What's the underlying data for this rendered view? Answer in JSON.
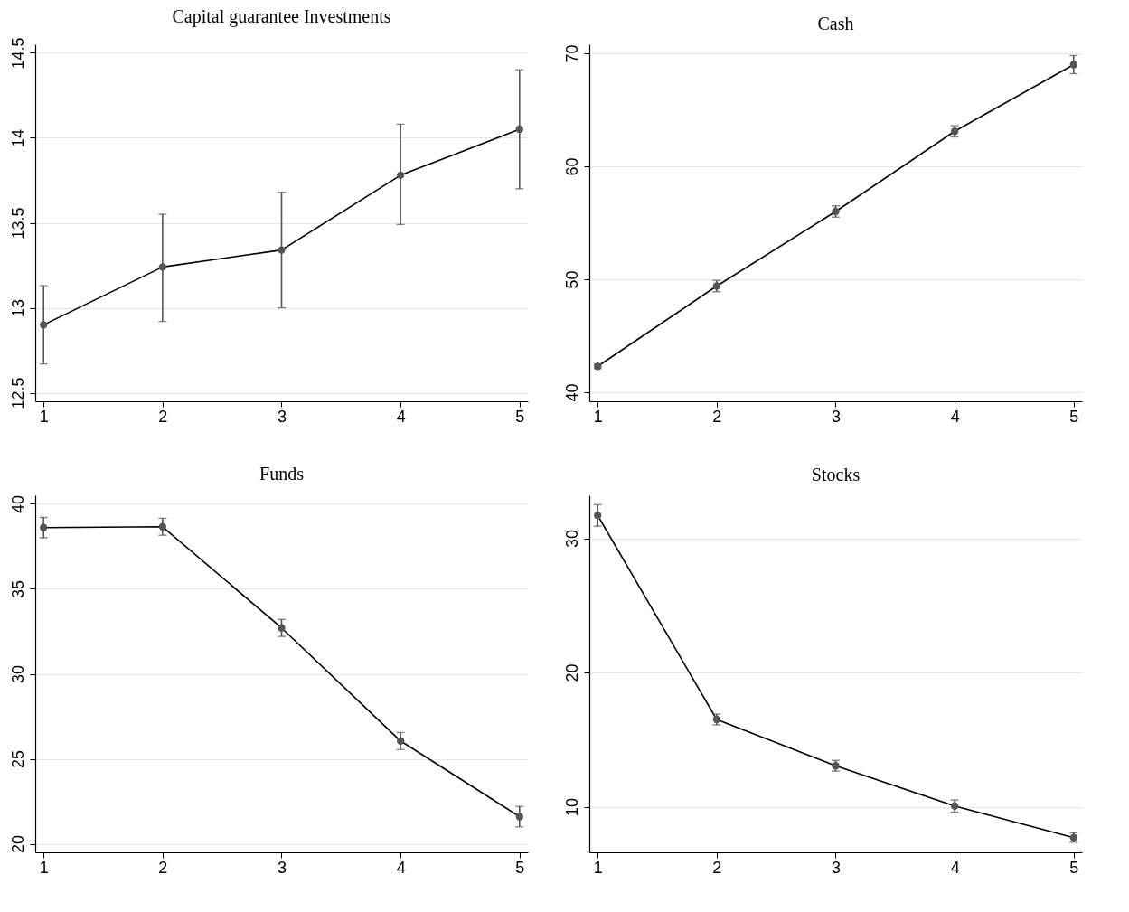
{
  "chart_data": [
    {
      "type": "line",
      "title": "Capital guarantee Investments",
      "x": [
        1,
        2,
        3,
        4,
        5
      ],
      "xlim": [
        0.93,
        5.07
      ],
      "xticks": [
        1,
        2,
        3,
        4,
        5
      ],
      "ylim": [
        12.45,
        14.55
      ],
      "yticks": [
        12.5,
        13,
        13.5,
        14,
        14.5
      ],
      "grid": "y",
      "marker": "circle",
      "line_style": "solid",
      "series": [
        {
          "color": "#555555",
          "values": [
            12.9,
            13.24,
            13.34,
            13.78,
            14.05
          ],
          "errors": [
            [
              12.67,
              13.13
            ],
            [
              12.92,
              13.55
            ],
            [
              13.0,
              13.68
            ],
            [
              13.49,
              14.08
            ],
            [
              13.7,
              14.4
            ]
          ]
        }
      ]
    },
    {
      "type": "line",
      "title": "Cash",
      "x": [
        1,
        2,
        3,
        4,
        5
      ],
      "xlim": [
        0.93,
        5.07
      ],
      "xticks": [
        1,
        2,
        3,
        4,
        5
      ],
      "ylim": [
        39.2,
        70.8
      ],
      "yticks": [
        40,
        50,
        60,
        70
      ],
      "grid": "y",
      "marker": "circle",
      "line_style": "solid",
      "series": [
        {
          "color": "#555555",
          "values": [
            42.3,
            49.4,
            56.0,
            63.1,
            69.0
          ],
          "errors": [
            [
              42.1,
              42.5
            ],
            [
              48.9,
              49.9
            ],
            [
              55.5,
              56.5
            ],
            [
              62.6,
              63.6
            ],
            [
              68.2,
              69.8
            ]
          ]
        }
      ]
    },
    {
      "type": "line",
      "title": "Funds",
      "x": [
        1,
        2,
        3,
        4,
        5
      ],
      "xlim": [
        0.93,
        5.07
      ],
      "xticks": [
        1,
        2,
        3,
        4,
        5
      ],
      "ylim": [
        19.5,
        40.5
      ],
      "yticks": [
        20,
        25,
        30,
        35,
        40
      ],
      "grid": "y",
      "marker": "circle",
      "line_style": "solid",
      "series": [
        {
          "color": "#555555",
          "values": [
            38.6,
            38.65,
            32.7,
            26.05,
            21.6
          ],
          "errors": [
            [
              38.0,
              39.2
            ],
            [
              38.15,
              39.15
            ],
            [
              32.2,
              33.2
            ],
            [
              25.55,
              26.55
            ],
            [
              21.0,
              22.2
            ]
          ]
        }
      ]
    },
    {
      "type": "line",
      "title": "Stocks",
      "x": [
        1,
        2,
        3,
        4,
        5
      ],
      "xlim": [
        0.93,
        5.07
      ],
      "xticks": [
        1,
        2,
        3,
        4,
        5
      ],
      "ylim": [
        6.6,
        33.2
      ],
      "yticks": [
        10,
        20,
        30
      ],
      "grid": "y",
      "marker": "circle",
      "line_style": "solid",
      "series": [
        {
          "color": "#555555",
          "values": [
            31.7,
            16.5,
            13.05,
            10.05,
            7.7
          ],
          "errors": [
            [
              30.9,
              32.5
            ],
            [
              16.1,
              16.9
            ],
            [
              12.65,
              13.45
            ],
            [
              9.6,
              10.5
            ],
            [
              7.35,
              8.05
            ]
          ]
        }
      ]
    }
  ]
}
